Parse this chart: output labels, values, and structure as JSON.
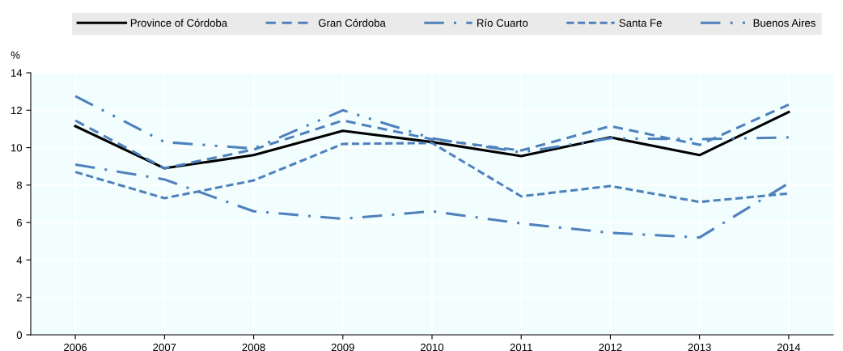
{
  "chart_data": {
    "type": "line",
    "ylabel": "%",
    "categories": [
      "2006",
      "2007",
      "2008",
      "2009",
      "2010",
      "2011",
      "2012",
      "2013",
      "2014"
    ],
    "series": [
      {
        "name": "Province of Córdoba",
        "color": "#000000",
        "line_style": "solid",
        "values": [
          11.15,
          8.9,
          9.6,
          10.9,
          10.3,
          9.55,
          10.55,
          9.6,
          11.9
        ]
      },
      {
        "name": "Gran Córdoba",
        "color": "#4f81bd",
        "line_style": "dashed",
        "values": [
          11.45,
          8.9,
          9.9,
          11.45,
          10.45,
          9.85,
          11.15,
          10.15,
          12.3
        ]
      },
      {
        "name": "Río Cuarto",
        "color": "#4f81bd",
        "line_style": "dashdot",
        "values": [
          9.1,
          8.3,
          6.6,
          6.2,
          6.6,
          5.95,
          5.45,
          5.2,
          8.1
        ]
      },
      {
        "name": "Santa Fe",
        "color": "#4f81bd",
        "line_style": "shortdash",
        "values": [
          8.7,
          7.3,
          8.25,
          10.2,
          10.25,
          7.4,
          7.95,
          7.1,
          7.55
        ]
      },
      {
        "name": "Buenos Aires",
        "color": "#4f81bd",
        "line_style": "dashdotdot",
        "values": [
          12.75,
          10.3,
          9.95,
          12.0,
          10.5,
          9.75,
          10.5,
          10.45,
          10.55
        ]
      }
    ],
    "ylim": [
      0,
      14
    ],
    "yticks": [
      0,
      2,
      4,
      6,
      8,
      10,
      12,
      14
    ],
    "grid": true,
    "legend": "top",
    "marker": "none"
  }
}
